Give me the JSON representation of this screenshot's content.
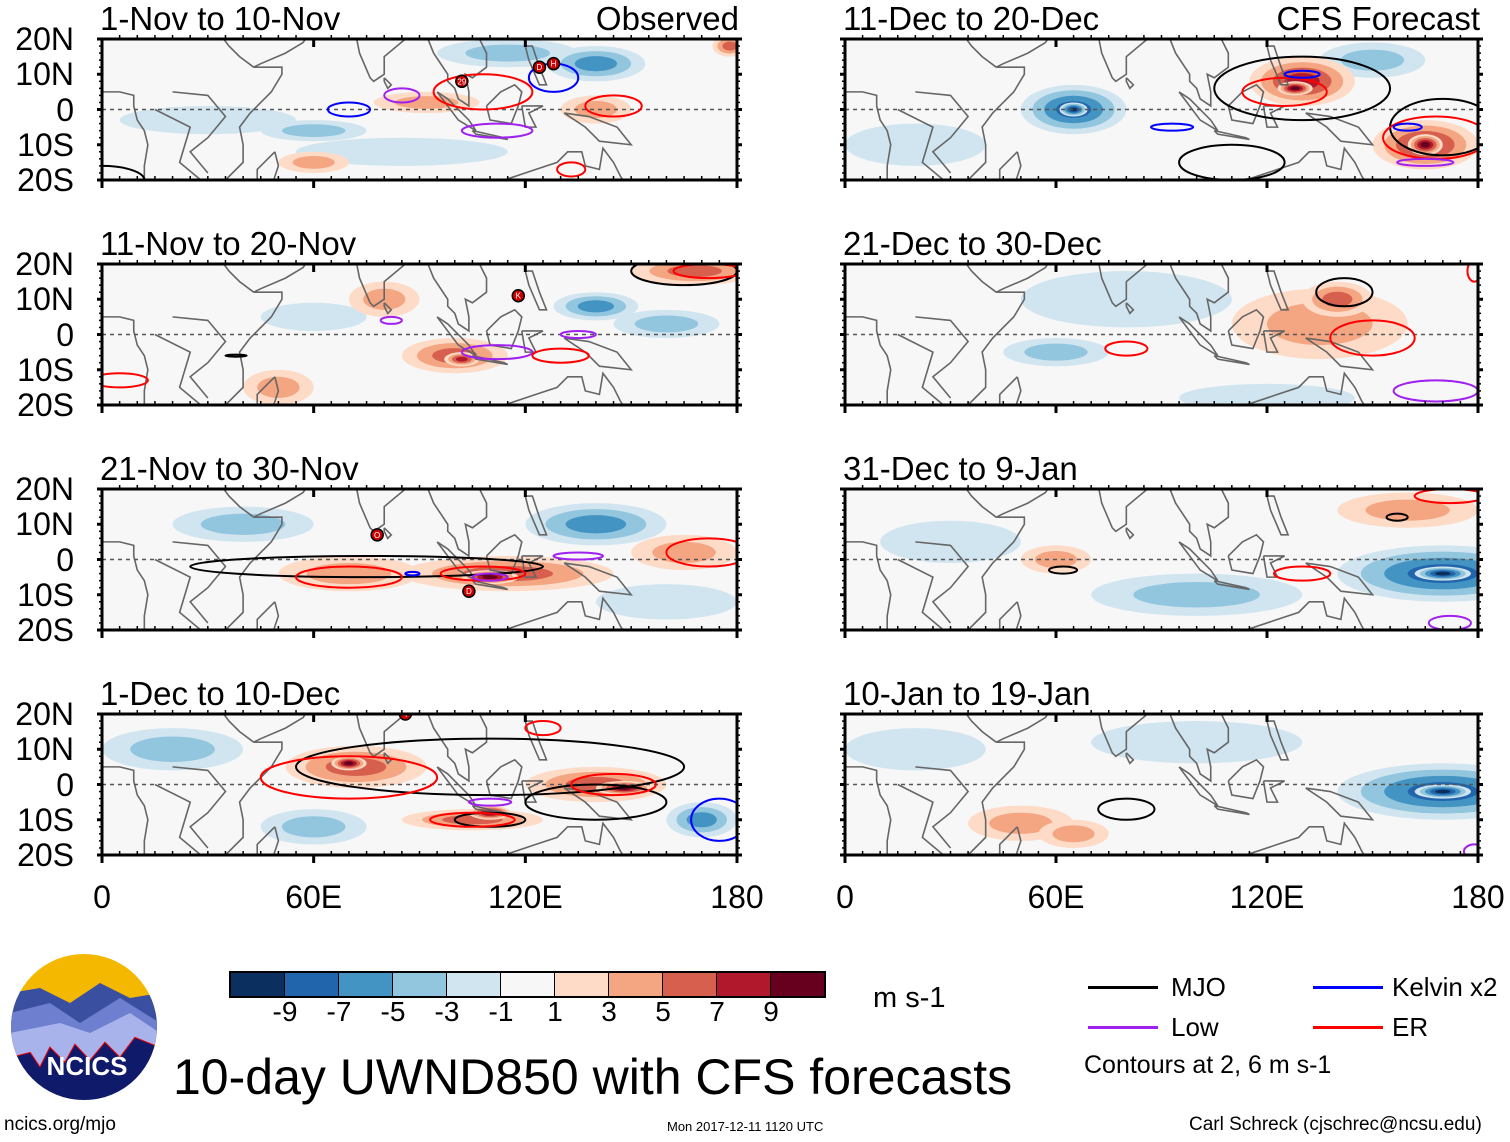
{
  "figure": {
    "title": "10-day UWND850 with CFS forecasts",
    "units": "m s-1",
    "logo_text": "NCICS",
    "site": "ncics.org/mjo",
    "timestamp": "Mon 2017-12-11 1120 UTC",
    "author": "Carl Schreck (cjschrec@ncsu.edu)",
    "contour_note": "Contours at 2, 6 m s-1"
  },
  "axes": {
    "y_ticks": [
      "20N",
      "10N",
      "0",
      "10S",
      "20S"
    ],
    "y_values": [
      20,
      10,
      0,
      -10,
      -20
    ],
    "x_ticks": [
      "0",
      "60E",
      "120E",
      "180"
    ],
    "x_values": [
      0,
      60,
      120,
      180
    ]
  },
  "colorbar": {
    "labels": [
      "-9",
      "-7",
      "-5",
      "-3",
      "-1",
      "1",
      "3",
      "5",
      "7",
      "9"
    ],
    "colors": [
      "#0b2f5e",
      "#2166ac",
      "#4393c3",
      "#92c5de",
      "#d1e5f0",
      "#f7f7f7",
      "#fddbc7",
      "#f4a582",
      "#d6604d",
      "#b2182b",
      "#67001f"
    ]
  },
  "legend": [
    {
      "label": "MJO",
      "color": "#000000"
    },
    {
      "label": "Kelvin x2",
      "color": "#0000ff"
    },
    {
      "label": "Low",
      "color": "#a020f0"
    },
    {
      "label": "ER",
      "color": "#ff0000"
    }
  ],
  "chart_data": {
    "type": "heatmap",
    "variable": "850-hPa zonal wind anomaly",
    "lon_range": [
      0,
      180
    ],
    "lat_range": [
      -20,
      20
    ],
    "panels": [
      {
        "title": "1-Nov to 10-Nov",
        "label": "Observed",
        "side": "left",
        "anomalies": [
          [
            140,
            13,
            14,
            5,
            -5
          ],
          [
            115,
            16,
            20,
            4,
            -3
          ],
          [
            30,
            -3,
            25,
            4,
            -1
          ],
          [
            60,
            -6,
            15,
            3,
            -3
          ],
          [
            85,
            -12,
            30,
            4,
            -1
          ],
          [
            140,
            0,
            10,
            4,
            3
          ],
          [
            92,
            2,
            15,
            3,
            3
          ],
          [
            60,
            -15,
            10,
            3,
            3
          ],
          [
            178,
            18,
            5,
            3,
            5
          ]
        ],
        "contours": [
          [
            "ER",
            108,
            5,
            14,
            5
          ],
          [
            "ER",
            145,
            1,
            8,
            3
          ],
          [
            "Low",
            85,
            4,
            5,
            2
          ],
          [
            "Low",
            112,
            -6,
            10,
            2
          ],
          [
            "Kelvin",
            70,
            0,
            6,
            2
          ],
          [
            "Kelvin",
            128,
            9,
            7,
            4
          ],
          [
            "ER",
            133,
            -17,
            4,
            2
          ],
          [
            "MJO",
            0,
            -20,
            12,
            4
          ]
        ],
        "storms": [
          [
            102,
            8,
            "29"
          ],
          [
            124,
            12,
            "D"
          ],
          [
            128,
            13,
            "H"
          ]
        ]
      },
      {
        "title": "11-Nov to 20-Nov",
        "label": "",
        "side": "left",
        "anomalies": [
          [
            100,
            -6,
            15,
            5,
            5
          ],
          [
            102,
            -7,
            5,
            2,
            7
          ],
          [
            168,
            18,
            18,
            4,
            5
          ],
          [
            50,
            -15,
            10,
            5,
            3
          ],
          [
            80,
            10,
            10,
            5,
            3
          ],
          [
            140,
            8,
            12,
            4,
            -5
          ],
          [
            160,
            3,
            15,
            4,
            -3
          ],
          [
            60,
            5,
            15,
            4,
            -1
          ]
        ],
        "contours": [
          [
            "MJO",
            165,
            18,
            15,
            4
          ],
          [
            "ER",
            172,
            18,
            10,
            2
          ],
          [
            "Low",
            82,
            4,
            3,
            1
          ],
          [
            "Low",
            112,
            -5,
            10,
            2
          ],
          [
            "ER",
            5,
            -13,
            8,
            2
          ],
          [
            "ER",
            130,
            -6,
            8,
            2
          ],
          [
            "Low",
            135,
            0,
            5,
            1
          ],
          [
            "MJO",
            38,
            -6,
            3,
            0.3
          ]
        ],
        "storms": [
          [
            118,
            11,
            "K"
          ]
        ]
      },
      {
        "title": "21-Nov to 30-Nov",
        "label": "",
        "side": "left",
        "anomalies": [
          [
            115,
            -4,
            30,
            5,
            5
          ],
          [
            110,
            -5,
            8,
            2,
            9
          ],
          [
            70,
            -4,
            20,
            5,
            3
          ],
          [
            165,
            2,
            15,
            5,
            3
          ],
          [
            140,
            10,
            20,
            6,
            -5
          ],
          [
            40,
            10,
            20,
            5,
            -3
          ],
          [
            160,
            -12,
            20,
            5,
            -1
          ]
        ],
        "contours": [
          [
            "MJO",
            75,
            -2,
            50,
            3
          ],
          [
            "ER",
            70,
            -5,
            15,
            3
          ],
          [
            "ER",
            108,
            -4,
            12,
            2
          ],
          [
            "ER",
            172,
            2,
            12,
            4
          ],
          [
            "Low",
            110,
            -5,
            5,
            1
          ],
          [
            "Low",
            135,
            1,
            7,
            1
          ],
          [
            "Kelvin",
            88,
            -4,
            2,
            0.5
          ]
        ],
        "storms": [
          [
            78,
            7,
            "O"
          ],
          [
            104,
            -9,
            "D"
          ]
        ]
      },
      {
        "title": "1-Dec to 10-Dec",
        "label": "",
        "side": "left",
        "anomalies": [
          [
            72,
            5,
            20,
            6,
            5
          ],
          [
            70,
            6,
            5,
            2,
            9
          ],
          [
            140,
            0,
            20,
            5,
            5
          ],
          [
            105,
            -10,
            20,
            3,
            5
          ],
          [
            148,
            -1,
            8,
            2,
            9
          ],
          [
            60,
            -12,
            15,
            5,
            -3
          ],
          [
            20,
            10,
            20,
            6,
            -3
          ],
          [
            170,
            -10,
            10,
            5,
            -5
          ],
          [
            110,
            -8,
            6,
            2,
            9
          ]
        ],
        "contours": [
          [
            "MJO",
            110,
            5,
            55,
            8
          ],
          [
            "MJO",
            140,
            -5,
            20,
            5
          ],
          [
            "MJO",
            110,
            -10,
            10,
            2
          ],
          [
            "ER",
            70,
            2,
            25,
            6
          ],
          [
            "ER",
            145,
            0,
            12,
            3
          ],
          [
            "ER",
            105,
            -10,
            12,
            2
          ],
          [
            "Kelvin",
            175,
            -10,
            8,
            6
          ],
          [
            "Low",
            110,
            -5,
            6,
            1
          ],
          [
            "ER",
            125,
            16,
            5,
            2
          ]
        ],
        "storms": [
          [
            86,
            20,
            "4"
          ]
        ]
      },
      {
        "title": "11-Dec to 20-Dec",
        "label": "CFS Forecast",
        "side": "right",
        "anomalies": [
          [
            65,
            0,
            15,
            7,
            -7
          ],
          [
            65,
            0,
            4,
            2,
            -9
          ],
          [
            150,
            14,
            15,
            5,
            -3
          ],
          [
            130,
            8,
            15,
            7,
            7
          ],
          [
            128,
            6,
            5,
            2,
            9
          ],
          [
            165,
            -10,
            15,
            7,
            7
          ],
          [
            165,
            -10,
            5,
            3,
            9
          ],
          [
            20,
            -10,
            20,
            6,
            -1
          ]
        ],
        "contours": [
          [
            "MJO",
            130,
            6,
            25,
            9
          ],
          [
            "MJO",
            170,
            -5,
            15,
            8
          ],
          [
            "MJO",
            110,
            -15,
            15,
            5
          ],
          [
            "ER",
            125,
            5,
            12,
            4
          ],
          [
            "ER",
            168,
            -8,
            15,
            6
          ],
          [
            "Kelvin",
            93,
            -5,
            6,
            1
          ],
          [
            "Kelvin",
            130,
            10,
            5,
            1
          ],
          [
            "Kelvin",
            160,
            -5,
            4,
            1
          ],
          [
            "Low",
            165,
            -15,
            8,
            1
          ]
        ],
        "storms": []
      },
      {
        "title": "21-Dec to 30-Dec",
        "label": "",
        "side": "right",
        "anomalies": [
          [
            60,
            -5,
            15,
            4,
            -3
          ],
          [
            80,
            10,
            30,
            8,
            -1
          ],
          [
            135,
            3,
            25,
            10,
            3
          ],
          [
            140,
            10,
            10,
            5,
            5
          ],
          [
            120,
            -18,
            25,
            4,
            -1
          ]
        ],
        "contours": [
          [
            "MJO",
            142,
            12,
            8,
            4
          ],
          [
            "ER",
            80,
            -4,
            6,
            2
          ],
          [
            "ER",
            150,
            -1,
            12,
            5
          ],
          [
            "ER",
            179,
            18,
            2,
            3
          ],
          [
            "Low",
            168,
            -16,
            12,
            3
          ]
        ],
        "storms": []
      },
      {
        "title": "31-Dec to 9-Jan",
        "label": "",
        "side": "right",
        "anomalies": [
          [
            170,
            -4,
            30,
            8,
            -7
          ],
          [
            170,
            -4,
            8,
            2,
            -9
          ],
          [
            100,
            -10,
            30,
            6,
            -3
          ],
          [
            160,
            14,
            20,
            5,
            3
          ],
          [
            60,
            0,
            10,
            4,
            3
          ],
          [
            30,
            5,
            20,
            6,
            -1
          ]
        ],
        "contours": [
          [
            "MJO",
            62,
            -3,
            4,
            1
          ],
          [
            "MJO",
            157,
            12,
            3,
            1
          ],
          [
            "ER",
            130,
            -4,
            8,
            2
          ],
          [
            "ER",
            172,
            18,
            10,
            2
          ],
          [
            "Low",
            172,
            -18,
            6,
            2
          ]
        ],
        "storms": []
      },
      {
        "title": "10-Jan to 19-Jan",
        "label": "",
        "side": "right",
        "anomalies": [
          [
            170,
            -2,
            30,
            8,
            -7
          ],
          [
            170,
            -2,
            8,
            2,
            -9
          ],
          [
            50,
            -11,
            15,
            5,
            3
          ],
          [
            65,
            -14,
            10,
            4,
            3
          ],
          [
            100,
            12,
            30,
            6,
            -1
          ],
          [
            20,
            10,
            20,
            6,
            -1
          ]
        ],
        "contours": [
          [
            "MJO",
            80,
            -7,
            8,
            3
          ],
          [
            "Low",
            179,
            -19,
            3,
            2
          ]
        ],
        "storms": []
      }
    ]
  }
}
